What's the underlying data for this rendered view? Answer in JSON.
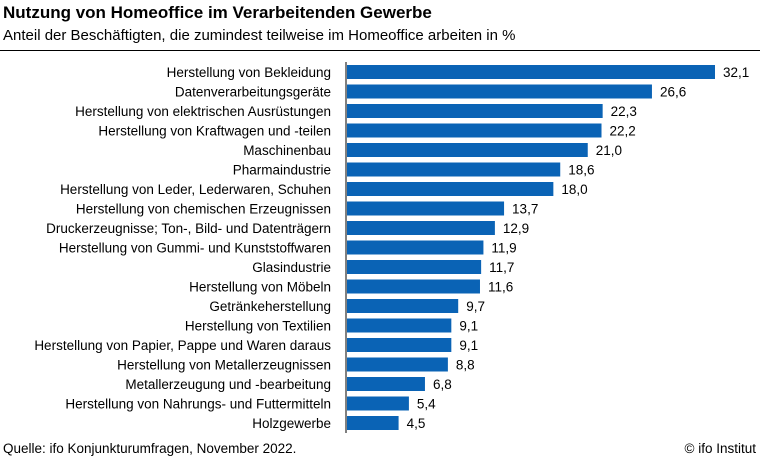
{
  "title": "Nutzung von Homeoffice im Verarbeitenden Gewerbe",
  "subtitle": "Anteil der Beschäftigten, die zumindest teilweise im Homeoffice arbeiten in %",
  "source": "Quelle: ifo Konjunkturumfragen, November 2022.",
  "copyright": "© ifo Institut",
  "colors": {
    "bar": "#0a63b5",
    "axis": "#000000"
  },
  "chart_data": {
    "type": "bar",
    "orientation": "horizontal",
    "categories": [
      "Herstellung von Bekleidung",
      "Datenverarbeitungsgeräte",
      "Herstellung von elektrischen Ausrüstungen",
      "Herstellung von Kraftwagen und -teilen",
      "Maschinenbau",
      "Pharmaindustrie",
      "Herstellung von Leder, Lederwaren, Schuhen",
      "Herstellung von chemischen Erzeugnissen",
      "Druckerzeugnisse; Ton-, Bild- und Datenträgern",
      "Herstellung von Gummi- und Kunststoffwaren",
      "Glasindustrie",
      "Herstellung von Möbeln",
      "Getränkeherstellung",
      "Herstellung von Textilien",
      "Herstellung von Papier, Pappe und Waren daraus",
      "Herstellung von Metallerzeugnissen",
      "Metallerzeugung und -bearbeitung",
      "Herstellung von Nahrungs- und Futtermitteln",
      "Holzgewerbe"
    ],
    "values": [
      32.1,
      26.6,
      22.3,
      22.2,
      21.0,
      18.6,
      18.0,
      13.7,
      12.9,
      11.9,
      11.7,
      11.6,
      9.7,
      9.1,
      9.1,
      8.8,
      6.8,
      5.4,
      4.5
    ],
    "value_labels": [
      "32,1",
      "26,6",
      "22,3",
      "22,2",
      "21,0",
      "18,6",
      "18,0",
      "13,7",
      "12,9",
      "11,9",
      "11,7",
      "11,6",
      "9,7",
      "9,1",
      "9,1",
      "8,8",
      "6,8",
      "5,4",
      "4,5"
    ],
    "xlim": [
      0,
      32.1
    ],
    "grid": false,
    "legend": "none"
  }
}
